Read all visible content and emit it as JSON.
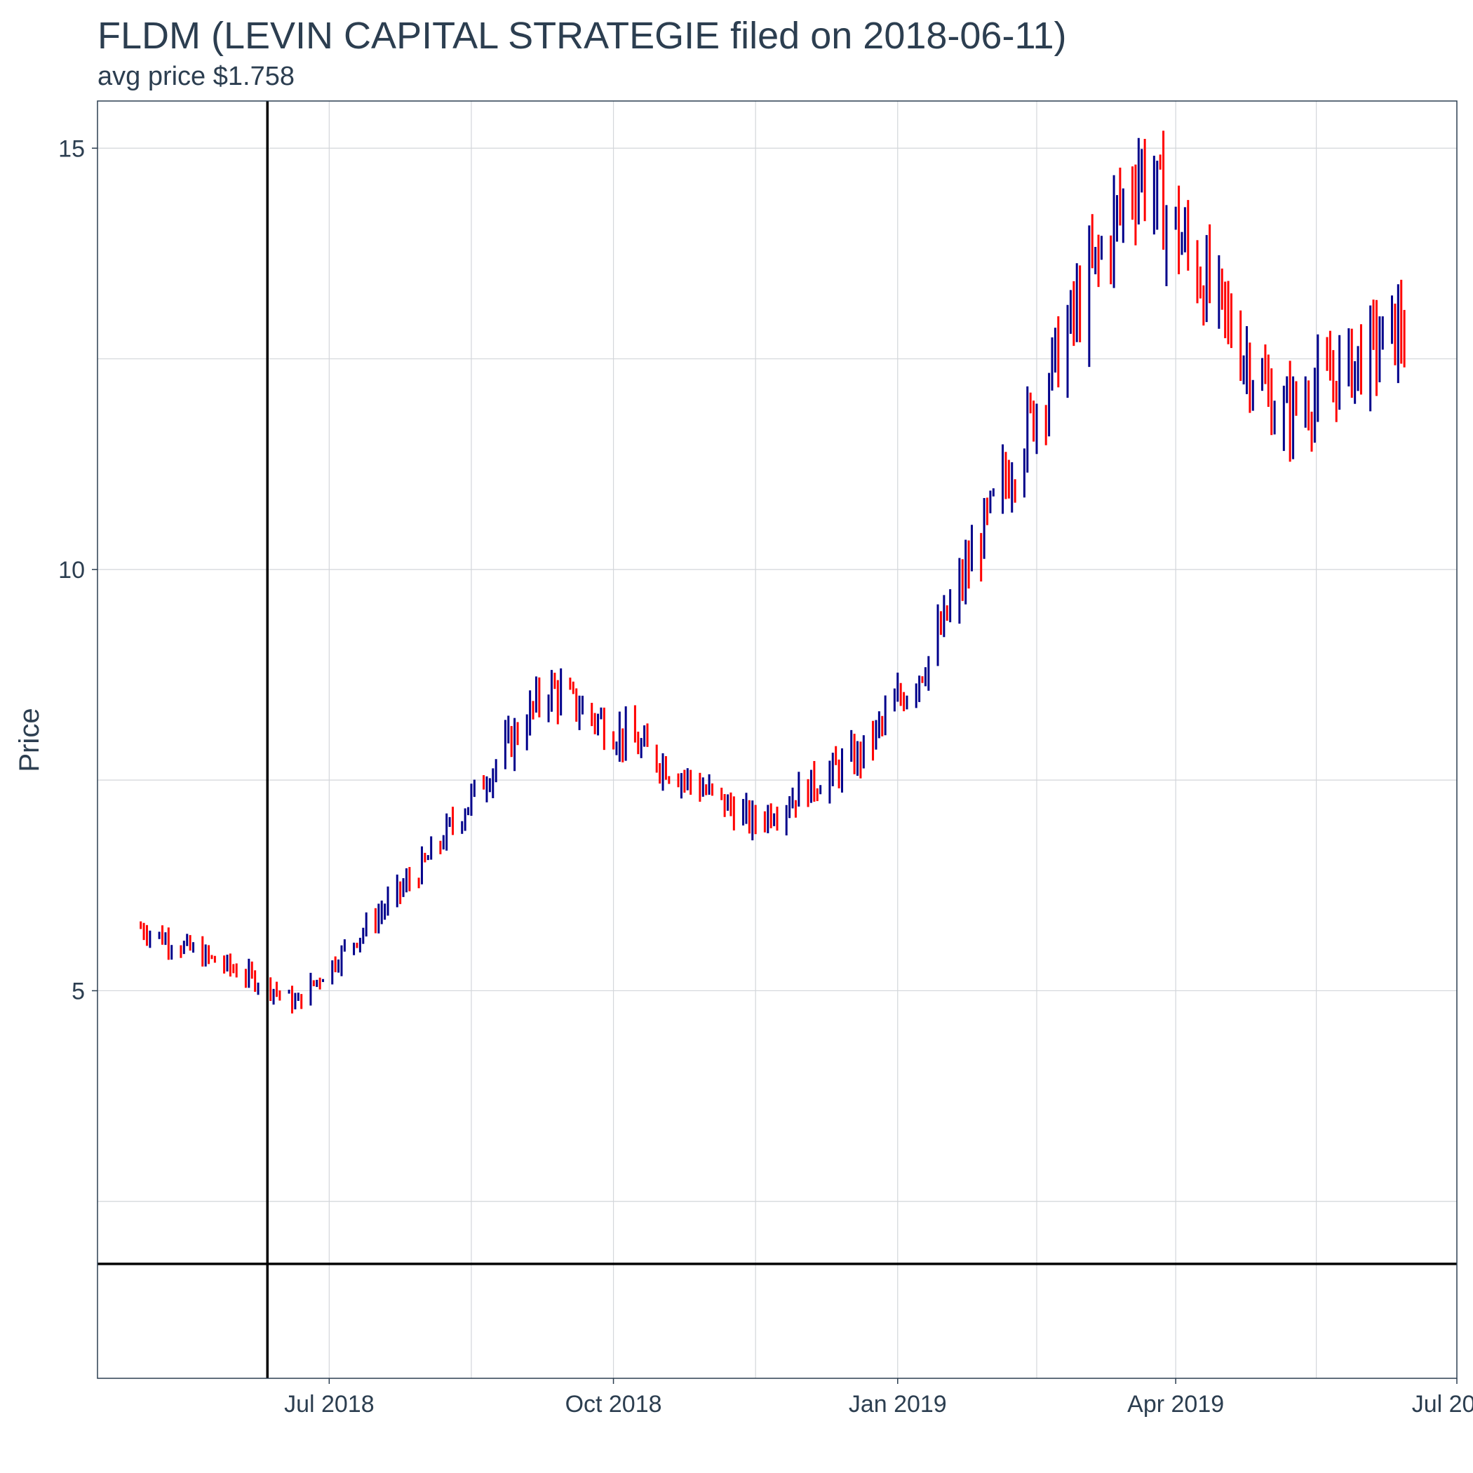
{
  "header": {
    "title": "FLDM (LEVIN CAPITAL STRATEGIE filed on 2018-06-11)",
    "subtitle": "avg price $1.758"
  },
  "colors": {
    "up": "#00008b",
    "down": "#ff0000",
    "reference": "#000000",
    "grid": "#d3d6da",
    "panel_border": "#2c3e50"
  },
  "chart_data": {
    "type": "ohlc",
    "title": "FLDM (LEVIN CAPITAL STRATEGIE filed on 2018-06-11)",
    "subtitle": "avg price $1.758",
    "xlabel": "",
    "ylabel": "Price",
    "x_range": [
      "2018-04-17",
      "2019-07-01"
    ],
    "y_range": [
      0.4,
      15.56
    ],
    "x_ticks": [
      {
        "date": "2018-07-01",
        "label": "Jul 2018"
      },
      {
        "date": "2018-10-01",
        "label": "Oct 2018"
      },
      {
        "date": "2019-01-01",
        "label": "Jan 2019"
      },
      {
        "date": "2019-04-01",
        "label": "Apr 2019"
      },
      {
        "date": "2019-07-01",
        "label": "Jul 2019"
      }
    ],
    "y_ticks": [
      5,
      10,
      15
    ],
    "grid": true,
    "reference_lines": {
      "filing_date": "2018-06-11",
      "avg_price": 1.758
    },
    "monthly_closes": [
      {
        "month": "2018-05",
        "close": 5.75
      },
      {
        "month": "2018-06",
        "close": 5.4
      },
      {
        "month": "2018-07",
        "close": 6.0
      },
      {
        "month": "2018-08",
        "close": 6.8
      },
      {
        "month": "2018-09",
        "close": 8.2
      },
      {
        "month": "2018-10",
        "close": 7.5
      },
      {
        "month": "2018-11",
        "close": 7.7
      },
      {
        "month": "2018-12",
        "close": 8.4
      },
      {
        "month": "2019-01",
        "close": 8.7
      },
      {
        "month": "2019-02",
        "close": 11.1
      },
      {
        "month": "2019-03",
        "close": 13.8
      },
      {
        "month": "2019-04",
        "close": 13.1
      },
      {
        "month": "2019-05",
        "close": 11.8
      },
      {
        "month": "2019-06",
        "close": 12.9
      }
    ],
    "key_points": [
      {
        "date": "2018-05-01",
        "price": 5.75
      },
      {
        "date": "2018-06-12",
        "price": 5.05
      },
      {
        "date": "2018-06-20",
        "price": 4.85
      },
      {
        "date": "2018-08-01",
        "price": 6.5
      },
      {
        "date": "2018-09-10",
        "price": 8.6
      },
      {
        "date": "2018-11-15",
        "price": 7.0
      },
      {
        "date": "2018-12-20",
        "price": 7.8
      },
      {
        "date": "2019-01-12",
        "price": 9.0
      },
      {
        "date": "2019-03-20",
        "price": 14.8
      },
      {
        "date": "2019-05-05",
        "price": 11.8
      },
      {
        "date": "2019-06-14",
        "price": 12.9
      }
    ]
  }
}
